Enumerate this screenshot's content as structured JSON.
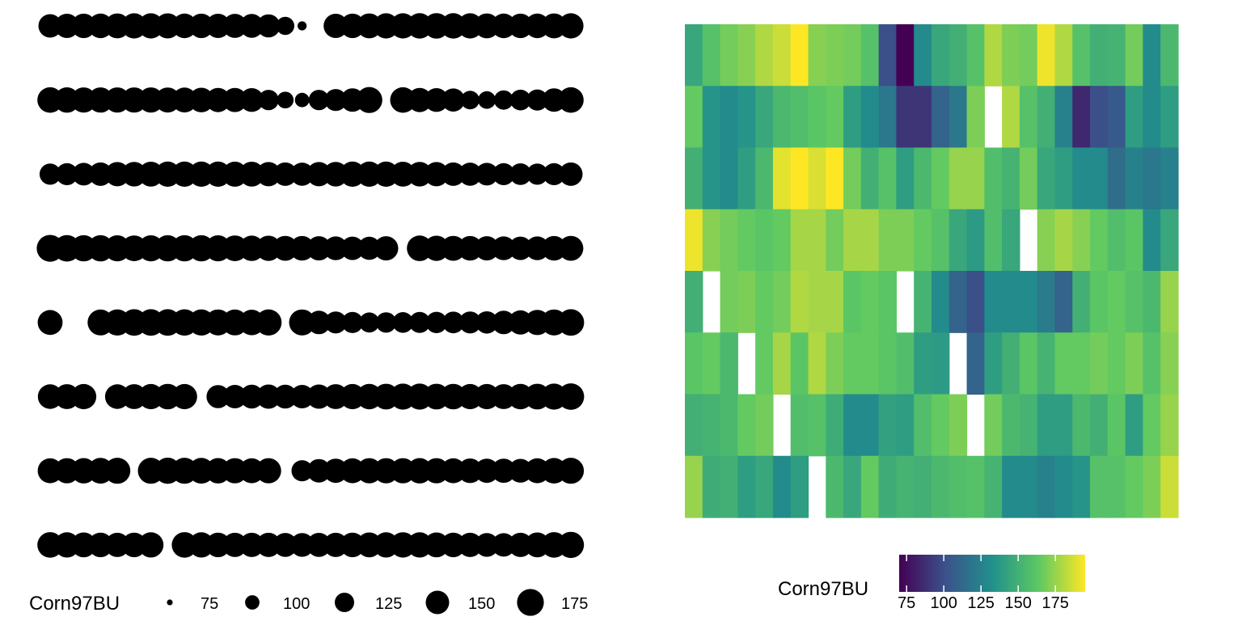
{
  "chart_data": [
    {
      "type": "scatter",
      "size_variable": "Corn97BU",
      "legend": {
        "title": "Corn97BU",
        "placement": "bottom",
        "values": [
          75,
          100,
          125,
          150,
          175
        ],
        "labels": [
          "75",
          "100",
          "125",
          "150",
          "175"
        ]
      },
      "columns": 32,
      "rows": [
        [
          150,
          155,
          157,
          158,
          160,
          162,
          163,
          161,
          158,
          157,
          156,
          154,
          152,
          148,
          118,
          82,
          null,
          155,
          157,
          160,
          162,
          163,
          164,
          165,
          164,
          162,
          160,
          158,
          157,
          158,
          160,
          162
        ],
        [
          165,
          164,
          162,
          162,
          163,
          163,
          162,
          161,
          160,
          158,
          156,
          154,
          152,
          130,
          110,
          100,
          130,
          140,
          150,
          168,
          null,
          165,
          155,
          152,
          148,
          120,
          115,
          125,
          132,
          135,
          150,
          165
        ],
        [
          135,
          140,
          145,
          150,
          155,
          158,
          160,
          162,
          163,
          163,
          162,
          161,
          160,
          155,
          150,
          148,
          156,
          158,
          162,
          163,
          162,
          160,
          158,
          155,
          150,
          148,
          145,
          140,
          138,
          135,
          140,
          150
        ],
        [
          175,
          172,
          170,
          170,
          168,
          166,
          168,
          170,
          170,
          170,
          168,
          166,
          164,
          162,
          160,
          158,
          155,
          152,
          150,
          148,
          155,
          null,
          165,
          163,
          160,
          158,
          156,
          152,
          150,
          152,
          158,
          160
        ],
        [
          160,
          null,
          null,
          167,
          170,
          172,
          172,
          172,
          171,
          170,
          168,
          167,
          165,
          170,
          null,
          168,
          150,
          140,
          135,
          128,
          130,
          132,
          134,
          136,
          138,
          140,
          142,
          150,
          155,
          162,
          168,
          172
        ],
        [
          158,
          160,
          162,
          null,
          158,
          160,
          163,
          165,
          163,
          null,
          148,
          150,
          152,
          155,
          152,
          150,
          155,
          160,
          162,
          164,
          166,
          168,
          168,
          166,
          165,
          163,
          162,
          160,
          164,
          166,
          168,
          172
        ],
        [
          160,
          162,
          164,
          166,
          168,
          null,
          168,
          170,
          168,
          166,
          164,
          162,
          160,
          162,
          null,
          135,
          150,
          155,
          160,
          162,
          163,
          163,
          164,
          162,
          160,
          158,
          156,
          154,
          152,
          160,
          165,
          168
        ],
        [
          165,
          162,
          160,
          158,
          156,
          158,
          163,
          null,
          165,
          162,
          158,
          155,
          156,
          155,
          153,
          152,
          154,
          156,
          158,
          160,
          162,
          164,
          163,
          160,
          158,
          155,
          152,
          150,
          155,
          160,
          165,
          170
        ]
      ]
    },
    {
      "type": "heatmap",
      "value_variable": "Corn97BU",
      "colorbar": {
        "title": "Corn97BU",
        "placement": "bottom",
        "min": 70,
        "max": 195,
        "ticks": [
          75,
          100,
          125,
          150,
          175
        ],
        "tick_labels": [
          "75",
          "100",
          "125",
          "150",
          "175"
        ],
        "palette": [
          "#440154",
          "#3b528b",
          "#21908c",
          "#5dc863",
          "#fde725"
        ]
      },
      "columns": 28,
      "rows": [
        [
          145,
          160,
          168,
          172,
          180,
          185,
          195,
          172,
          170,
          168,
          160,
          100,
          70,
          130,
          145,
          150,
          160,
          180,
          170,
          168,
          192,
          180,
          160,
          150,
          152,
          168,
          130,
          155
        ],
        [
          165,
          135,
          130,
          135,
          145,
          155,
          158,
          162,
          165,
          140,
          130,
          120,
          90,
          90,
          110,
          120,
          170,
          null,
          180,
          160,
          150,
          125,
          85,
          100,
          105,
          140,
          130,
          140
        ],
        [
          150,
          135,
          130,
          140,
          155,
          190,
          195,
          188,
          195,
          168,
          150,
          160,
          140,
          155,
          165,
          175,
          175,
          158,
          152,
          168,
          145,
          140,
          130,
          130,
          115,
          125,
          120,
          125
        ],
        [
          192,
          172,
          168,
          165,
          162,
          165,
          178,
          178,
          168,
          178,
          178,
          170,
          170,
          165,
          160,
          145,
          138,
          158,
          145,
          null,
          172,
          178,
          172,
          165,
          158,
          162,
          130,
          145
        ],
        [
          150,
          null,
          168,
          170,
          165,
          168,
          180,
          178,
          178,
          162,
          165,
          162,
          null,
          152,
          130,
          110,
          100,
          130,
          130,
          130,
          122,
          110,
          150,
          162,
          165,
          160,
          155,
          175
        ],
        [
          162,
          165,
          155,
          null,
          165,
          178,
          162,
          180,
          170,
          165,
          165,
          162,
          158,
          140,
          138,
          null,
          110,
          140,
          150,
          162,
          152,
          165,
          165,
          168,
          165,
          170,
          160,
          172
        ],
        [
          150,
          152,
          155,
          165,
          168,
          null,
          158,
          160,
          148,
          130,
          130,
          142,
          140,
          158,
          165,
          170,
          null,
          168,
          155,
          152,
          140,
          140,
          155,
          150,
          162,
          140,
          165,
          175
        ],
        [
          175,
          148,
          150,
          140,
          145,
          130,
          140,
          null,
          155,
          145,
          165,
          148,
          152,
          150,
          155,
          158,
          160,
          152,
          130,
          130,
          125,
          130,
          135,
          160,
          160,
          165,
          170,
          185
        ]
      ]
    }
  ]
}
